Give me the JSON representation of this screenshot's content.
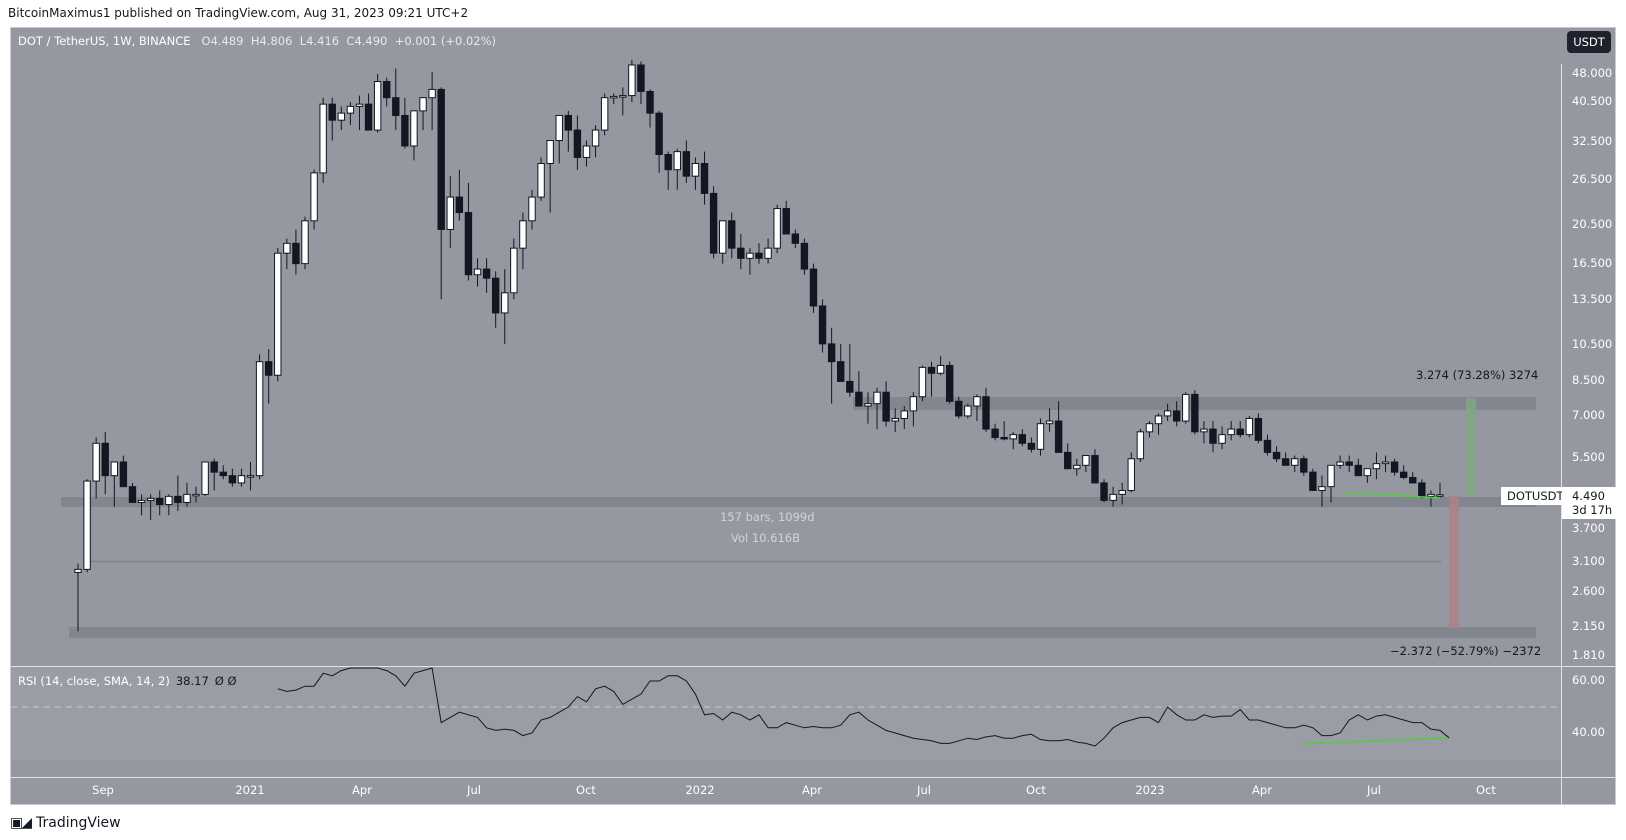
{
  "header": {
    "publisher_line": "BitcoinMaximus1 published on TradingView.com, Aug 31, 2023 09:21 UTC+2"
  },
  "legend": {
    "symbol": "DOT / TetherUS, 1W, BINANCE",
    "open_label": "O",
    "open": "4.489",
    "high_label": "H",
    "high": "4.806",
    "low_label": "L",
    "low": "4.416",
    "close_label": "C",
    "close": "4.490",
    "change": "+0.001 (+0.02%)"
  },
  "price_axis": {
    "currency_button": "USDT",
    "ticks": [
      "48.000",
      "40.500",
      "32.500",
      "26.500",
      "20.500",
      "16.500",
      "13.500",
      "10.500",
      "8.500",
      "7.000",
      "5.500",
      "3.700",
      "3.100",
      "2.600",
      "2.150",
      "1.810"
    ],
    "last_price": "4.490",
    "countdown": "3d 17h",
    "symbol_tag": "DOTUSDT"
  },
  "annotations": {
    "range_bars": "157 bars, 1099d",
    "range_volume": "Vol 10.616B",
    "measure_up": "3.274 (73.28%) 3274",
    "measure_down": "−2.372 (−52.79%) −2372"
  },
  "rsi": {
    "label": "RSI (14, close, SMA, 14, 2)",
    "value": "38.17",
    "extra": "Ø  Ø",
    "ticks": [
      "60.00",
      "40.00"
    ]
  },
  "time_axis": {
    "labels": [
      "Sep",
      "2021",
      "Apr",
      "Jul",
      "Oct",
      "2022",
      "Apr",
      "Jul",
      "Oct",
      "2023",
      "Apr",
      "Jul",
      "Oct"
    ]
  },
  "footer": {
    "brand": "TradingView"
  },
  "colors": {
    "background": "#9598a1",
    "bull_body": "#ffffff",
    "bear_body": "#131722",
    "zone": "#7f828b",
    "trendline": "#4cd137",
    "measure_up": "#7fa87f",
    "measure_down": "#b07f86",
    "rsi_line": "#131722"
  },
  "chart_data": {
    "type": "candlestick",
    "title": "DOT / TetherUS, 1W, BINANCE",
    "xlabel": "",
    "ylabel": "USDT",
    "y_scale": "log",
    "ylim": [
      1.81,
      52
    ],
    "x_ticks": [
      "Sep",
      "2021",
      "Apr",
      "Jul",
      "Oct",
      "2022",
      "Apr",
      "Jul",
      "Oct",
      "2023",
      "Apr",
      "Jul",
      "Oct"
    ],
    "horizontal_zones": [
      {
        "name": "resistance",
        "low": 7.1,
        "high": 7.7
      },
      {
        "name": "support",
        "low": 4.2,
        "high": 4.45
      },
      {
        "name": "lower-support",
        "low": 2.05,
        "high": 2.2
      }
    ],
    "measure_up": {
      "from": 4.47,
      "to": 7.74,
      "change": 3.274,
      "pct": 73.28
    },
    "measure_down": {
      "from": 4.49,
      "to": 2.12,
      "change": -2.372,
      "pct": -52.79
    },
    "bars_count": 157,
    "ohlc": [
      [
        2.9,
        3.05,
        2.08,
        2.95
      ],
      [
        2.95,
        4.9,
        2.9,
        4.85
      ],
      [
        4.85,
        6.2,
        4.4,
        6.0
      ],
      [
        6.0,
        6.4,
        4.5,
        5.0
      ],
      [
        5.0,
        5.4,
        4.2,
        5.4
      ],
      [
        5.4,
        5.6,
        4.8,
        4.7
      ],
      [
        4.7,
        4.8,
        4.4,
        4.3
      ],
      [
        4.3,
        4.5,
        4.0,
        4.35
      ],
      [
        4.35,
        4.5,
        3.9,
        4.4
      ],
      [
        4.4,
        4.6,
        4.0,
        4.25
      ],
      [
        4.25,
        4.5,
        4.0,
        4.45
      ],
      [
        4.45,
        5.0,
        4.1,
        4.3
      ],
      [
        4.3,
        4.8,
        4.2,
        4.5
      ],
      [
        4.5,
        4.7,
        4.3,
        4.5
      ],
      [
        4.5,
        5.4,
        4.45,
        5.4
      ],
      [
        5.4,
        5.5,
        4.6,
        5.1
      ],
      [
        5.1,
        5.3,
        4.9,
        5.0
      ],
      [
        5.0,
        5.2,
        4.7,
        4.8
      ],
      [
        4.8,
        5.2,
        4.7,
        5.0
      ],
      [
        5.0,
        5.4,
        4.6,
        5.0
      ],
      [
        5.0,
        9.9,
        4.9,
        9.5
      ],
      [
        9.5,
        10.2,
        7.5,
        8.8
      ],
      [
        8.8,
        18.0,
        8.5,
        17.5
      ],
      [
        17.5,
        19.0,
        16.0,
        18.5
      ],
      [
        18.5,
        20.0,
        15.5,
        16.5
      ],
      [
        16.5,
        21.5,
        16.0,
        21.0
      ],
      [
        21.0,
        28.0,
        20.0,
        27.5
      ],
      [
        27.5,
        42.0,
        26.0,
        40.5
      ],
      [
        40.5,
        42.0,
        33.0,
        37.0
      ],
      [
        37.0,
        40.0,
        35.0,
        38.5
      ],
      [
        38.5,
        41.0,
        36.0,
        40.0
      ],
      [
        40.0,
        42.5,
        35.0,
        40.5
      ],
      [
        40.5,
        43.0,
        36.0,
        35.0
      ],
      [
        35.0,
        48.0,
        34.5,
        46.0
      ],
      [
        46.0,
        47.0,
        40.0,
        42.0
      ],
      [
        42.0,
        49.5,
        35.0,
        38.0
      ],
      [
        38.0,
        42.0,
        31.5,
        32.0
      ],
      [
        32.0,
        39.0,
        29.5,
        39.0
      ],
      [
        39.0,
        41.0,
        35.0,
        42.0
      ],
      [
        42.0,
        48.5,
        35.0,
        44.0
      ],
      [
        44.0,
        44.5,
        13.5,
        20.0
      ],
      [
        20.0,
        27.0,
        18.0,
        24.0
      ],
      [
        24.0,
        28.0,
        21.0,
        22.0
      ],
      [
        22.0,
        26.0,
        15.0,
        15.5
      ],
      [
        15.5,
        17.0,
        14.5,
        16.0
      ],
      [
        16.0,
        17.0,
        14.0,
        15.2
      ],
      [
        15.2,
        15.8,
        11.5,
        12.5
      ],
      [
        12.5,
        16.0,
        10.5,
        14.0
      ],
      [
        14.0,
        19.0,
        13.5,
        18.0
      ],
      [
        18.0,
        22.0,
        16.0,
        21.0
      ],
      [
        21.0,
        25.0,
        20.0,
        24.0
      ],
      [
        24.0,
        30.0,
        23.5,
        29.0
      ],
      [
        29.0,
        31.0,
        22.0,
        33.0
      ],
      [
        33.0,
        36.0,
        29.0,
        38.0
      ],
      [
        38.0,
        39.0,
        31.0,
        35.0
      ],
      [
        35.0,
        38.0,
        28.0,
        30.0
      ],
      [
        30.0,
        33.0,
        28.5,
        32.0
      ],
      [
        32.0,
        36.0,
        30.0,
        35.0
      ],
      [
        35.0,
        43.0,
        34.0,
        42.0
      ],
      [
        42.0,
        43.0,
        40.5,
        42.3
      ],
      [
        42.3,
        44.5,
        38.0,
        42.5
      ],
      [
        42.5,
        52.0,
        41.0,
        50.5
      ],
      [
        50.5,
        51.5,
        40.5,
        43.5
      ],
      [
        43.5,
        44.0,
        35.5,
        38.5
      ],
      [
        38.5,
        39.0,
        27.5,
        30.5
      ],
      [
        30.5,
        31.0,
        25.0,
        28.0
      ],
      [
        28.0,
        31.5,
        25.0,
        31.0
      ],
      [
        31.0,
        33.0,
        26.0,
        27.0
      ],
      [
        27.0,
        30.0,
        25.0,
        29.0
      ],
      [
        29.0,
        31.0,
        23.0,
        24.5
      ],
      [
        24.5,
        25.5,
        17.0,
        17.5
      ],
      [
        17.5,
        21.0,
        16.5,
        21.0
      ],
      [
        21.0,
        22.0,
        17.0,
        18.0
      ],
      [
        18.0,
        19.5,
        16.0,
        17.0
      ],
      [
        17.0,
        18.0,
        15.5,
        17.5
      ],
      [
        17.5,
        18.5,
        16.5,
        17.0
      ],
      [
        17.0,
        19.0,
        16.5,
        18.0
      ],
      [
        18.0,
        23.0,
        17.5,
        22.5
      ],
      [
        22.5,
        23.5,
        19.5,
        19.5
      ],
      [
        19.5,
        20.0,
        18.0,
        18.5
      ],
      [
        18.5,
        19.0,
        15.5,
        16.0
      ],
      [
        16.0,
        16.5,
        12.5,
        13.0
      ],
      [
        13.0,
        13.5,
        10.0,
        10.5
      ],
      [
        10.5,
        11.5,
        7.5,
        9.5
      ],
      [
        9.5,
        10.5,
        8.5,
        8.5
      ],
      [
        8.5,
        10.5,
        7.8,
        8.0
      ],
      [
        8.0,
        9.0,
        7.4,
        7.4
      ],
      [
        7.4,
        8.0,
        6.7,
        7.5
      ],
      [
        7.5,
        8.2,
        6.5,
        8.0
      ],
      [
        8.0,
        8.5,
        6.6,
        6.8
      ],
      [
        6.8,
        7.3,
        6.4,
        6.9
      ],
      [
        6.9,
        7.4,
        6.5,
        7.2
      ],
      [
        7.2,
        8.0,
        6.6,
        7.8
      ],
      [
        7.8,
        9.3,
        7.6,
        9.2
      ],
      [
        9.2,
        9.5,
        7.8,
        8.9
      ],
      [
        8.9,
        9.8,
        8.8,
        9.3
      ],
      [
        9.3,
        9.5,
        7.5,
        7.6
      ],
      [
        7.6,
        7.8,
        6.9,
        7.0
      ],
      [
        7.0,
        7.5,
        6.9,
        7.4
      ],
      [
        7.4,
        7.9,
        6.8,
        7.8
      ],
      [
        7.8,
        8.2,
        6.4,
        6.5
      ],
      [
        6.5,
        6.7,
        6.1,
        6.2
      ],
      [
        6.2,
        6.8,
        6.1,
        6.15
      ],
      [
        6.15,
        6.4,
        5.8,
        6.3
      ],
      [
        6.3,
        6.5,
        5.9,
        6.0
      ],
      [
        6.0,
        6.2,
        5.7,
        5.8
      ],
      [
        5.8,
        6.9,
        5.6,
        6.7
      ],
      [
        6.7,
        7.3,
        6.4,
        6.8
      ],
      [
        6.8,
        7.6,
        6.3,
        5.7
      ],
      [
        5.7,
        6.0,
        5.2,
        5.2
      ],
      [
        5.2,
        5.5,
        5.0,
        5.3
      ],
      [
        5.3,
        5.6,
        5.1,
        5.6
      ],
      [
        5.6,
        5.8,
        4.9,
        4.8
      ],
      [
        4.8,
        4.9,
        4.3,
        4.35
      ],
      [
        4.35,
        4.7,
        4.2,
        4.5
      ],
      [
        4.5,
        4.8,
        4.25,
        4.6
      ],
      [
        4.6,
        5.7,
        4.55,
        5.5
      ],
      [
        5.5,
        6.5,
        5.4,
        6.4
      ],
      [
        6.4,
        6.8,
        6.2,
        6.7
      ],
      [
        6.7,
        7.1,
        6.3,
        7.0
      ],
      [
        7.0,
        7.5,
        6.8,
        7.2
      ],
      [
        7.2,
        7.6,
        6.6,
        6.8
      ],
      [
        6.8,
        8.0,
        6.7,
        7.9
      ],
      [
        7.9,
        8.1,
        6.3,
        6.4
      ],
      [
        6.4,
        6.8,
        6.0,
        6.5
      ],
      [
        6.5,
        6.8,
        5.7,
        6.0
      ],
      [
        6.0,
        6.6,
        5.8,
        6.3
      ],
      [
        6.3,
        6.8,
        6.1,
        6.5
      ],
      [
        6.5,
        6.8,
        6.2,
        6.3
      ],
      [
        6.3,
        7.0,
        6.2,
        6.9
      ],
      [
        6.9,
        7.1,
        6.0,
        6.1
      ],
      [
        6.1,
        6.3,
        5.6,
        5.7
      ],
      [
        5.7,
        5.9,
        5.4,
        5.5
      ],
      [
        5.5,
        5.7,
        5.3,
        5.3
      ],
      [
        5.3,
        5.6,
        5.1,
        5.5
      ],
      [
        5.5,
        5.6,
        5.0,
        5.1
      ],
      [
        5.1,
        5.2,
        4.6,
        4.6
      ],
      [
        4.6,
        5.0,
        4.2,
        4.7
      ],
      [
        4.7,
        5.2,
        4.3,
        5.3
      ],
      [
        5.3,
        5.6,
        5.2,
        5.4
      ],
      [
        5.4,
        5.6,
        5.1,
        5.3
      ],
      [
        5.3,
        5.5,
        5.0,
        5.0
      ],
      [
        5.0,
        5.2,
        4.8,
        5.2
      ],
      [
        5.2,
        5.7,
        4.9,
        5.35
      ],
      [
        5.35,
        5.6,
        5.1,
        5.4
      ],
      [
        5.4,
        5.5,
        5.0,
        5.1
      ],
      [
        5.1,
        5.3,
        4.9,
        4.95
      ],
      [
        4.95,
        5.1,
        4.8,
        4.8
      ],
      [
        4.8,
        4.9,
        4.4,
        4.45
      ],
      [
        4.45,
        4.6,
        4.2,
        4.5
      ],
      [
        4.489,
        4.806,
        4.416,
        4.49
      ]
    ],
    "rsi_series": {
      "name": "RSI (14, close, SMA, 14, 2)",
      "last": 38.17,
      "ylim": [
        30,
        65
      ],
      "levels": [
        60,
        50,
        40
      ],
      "values": [
        null,
        null,
        null,
        null,
        null,
        null,
        null,
        null,
        null,
        null,
        null,
        null,
        null,
        null,
        null,
        null,
        null,
        null,
        null,
        null,
        null,
        null,
        57,
        56,
        56.5,
        58,
        58,
        63,
        62,
        64,
        65,
        65,
        65,
        65,
        64,
        62,
        58,
        63,
        64,
        65,
        44,
        46,
        48,
        47,
        46,
        42,
        41,
        41.5,
        41,
        39,
        40,
        45,
        46,
        48,
        50,
        54,
        52,
        57,
        58,
        56,
        51,
        53,
        55,
        60,
        60,
        62,
        62,
        60,
        55,
        47,
        47.5,
        45,
        48,
        47,
        45,
        47,
        42,
        42,
        44,
        43,
        42,
        42.5,
        42,
        42,
        43,
        47,
        48,
        45,
        43,
        41,
        40,
        39,
        38,
        37.5,
        37,
        36,
        36,
        37,
        38,
        37.5,
        38.5,
        39,
        38,
        38,
        39,
        39.5,
        37.5,
        37,
        37,
        37.5,
        36.5,
        36,
        35,
        38,
        42,
        44,
        45,
        46,
        46,
        44,
        50,
        47,
        45,
        45,
        47,
        46,
        46.5,
        46.5,
        49,
        45,
        45,
        44,
        43,
        42,
        42,
        43,
        42,
        39,
        39,
        40,
        45,
        47,
        45,
        46.5,
        47,
        46,
        45,
        44,
        44,
        41.5,
        41,
        38.17
      ]
    },
    "annotations": [
      "157 bars, 1099d",
      "Vol 10.616B",
      "3.274 (73.28%) 3274",
      "-2.372 (-52.79%) -2372"
    ]
  }
}
